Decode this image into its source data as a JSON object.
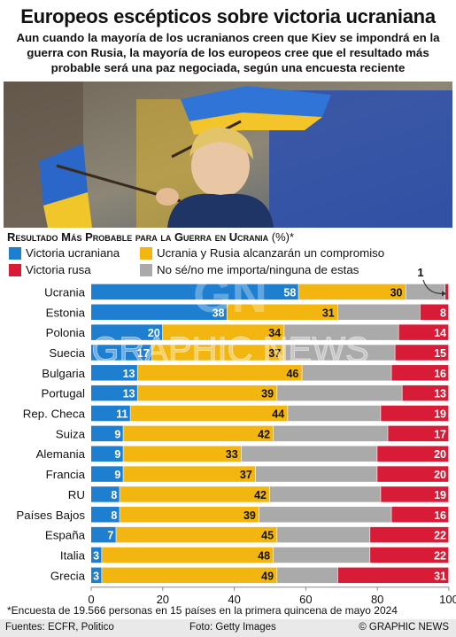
{
  "header": {
    "title": "Europeos escépticos sobre victoria ucraniana",
    "subtitle": "Aun cuando la mayoría de los ucranianos creen que Kiev se impondrá en la guerra con Rusia, la mayoría de los europeos cree que el resultado más probable será una paz negociada, según una encuesta reciente"
  },
  "photo": {
    "credit": "Foto: Getty Images"
  },
  "section_heading": "Resultado Más Probable para la Guerra en Ucrania",
  "section_heading_unit": "(%)*",
  "colors": {
    "ukraine": "#1e7fd0",
    "compromise": "#f3b50f",
    "unsure": "#aaaaaa",
    "russia": "#d81b36"
  },
  "chart_data": {
    "type": "bar",
    "orientation": "horizontal",
    "stacked": true,
    "title": "Resultado Más Probable para la Guerra en Ucrania (%)*",
    "categories": [
      "Ucrania",
      "Estonia",
      "Polonia",
      "Suecia",
      "Bulgaria",
      "Portugal",
      "Rep. Checa",
      "Suiza",
      "Alemania",
      "Francia",
      "RU",
      "Países Bajos",
      "España",
      "Italia",
      "Grecia"
    ],
    "series": [
      {
        "name": "Victoria ucraniana",
        "values": [
          58,
          38,
          20,
          17,
          13,
          13,
          11,
          9,
          9,
          9,
          8,
          8,
          7,
          3,
          3
        ]
      },
      {
        "name": "Ucrania y Rusia alcanzarán un compromiso",
        "values": [
          30,
          31,
          34,
          37,
          46,
          39,
          44,
          42,
          33,
          37,
          42,
          39,
          45,
          48,
          49
        ]
      },
      {
        "name": "No sé/no me importa/ninguna de estas",
        "values": [
          11,
          23,
          32,
          31,
          25,
          35,
          26,
          32,
          38,
          34,
          31,
          37,
          26,
          27,
          17
        ]
      },
      {
        "name": "Victoria rusa",
        "values": [
          1,
          8,
          14,
          15,
          16,
          13,
          19,
          17,
          20,
          20,
          19,
          16,
          22,
          22,
          31
        ]
      }
    ],
    "xlim": [
      0,
      100
    ],
    "xticks": [
      0,
      20,
      40,
      60,
      80,
      100
    ],
    "annotation": "1",
    "legend_position": "top"
  },
  "note": "*Encuesta de 19.566 personas en 15 países en la primera quincena de mayo 2024",
  "footer": {
    "sources": "Fuentes: ECFR, Politico",
    "credit": "Foto: Getty Images",
    "brand": "© GRAPHIC NEWS"
  }
}
